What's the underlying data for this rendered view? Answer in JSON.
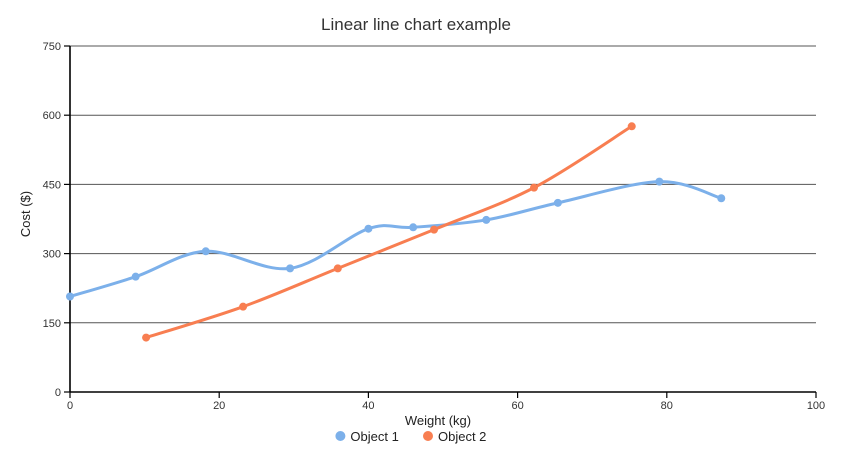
{
  "chart_data": {
    "type": "line",
    "title": "Linear line chart example",
    "xlabel": "Weight (kg)",
    "ylabel": "Cost ($)",
    "xlim": [
      0,
      100
    ],
    "ylim": [
      0,
      750
    ],
    "x_ticks": [
      "0",
      "20",
      "40",
      "60",
      "80",
      "100"
    ],
    "y_ticks": [
      "0",
      "150",
      "300",
      "450",
      "600",
      "750"
    ],
    "grid": true,
    "legend": "bottom",
    "series": [
      {
        "name": "Object 1",
        "color": "#7cb0ea",
        "points": [
          [
            0,
            207
          ],
          [
            8.8,
            250
          ],
          [
            18.2,
            305
          ],
          [
            29.5,
            268
          ],
          [
            40,
            354
          ],
          [
            46,
            357
          ],
          [
            55.8,
            373
          ],
          [
            65.4,
            410
          ],
          [
            79,
            456
          ],
          [
            87.3,
            420
          ]
        ]
      },
      {
        "name": "Object 2",
        "color": "#f87e51",
        "points": [
          [
            10.2,
            118
          ],
          [
            23.2,
            185
          ],
          [
            35.9,
            268
          ],
          [
            48.8,
            352
          ],
          [
            62.2,
            443
          ],
          [
            75.3,
            576
          ]
        ]
      }
    ]
  }
}
